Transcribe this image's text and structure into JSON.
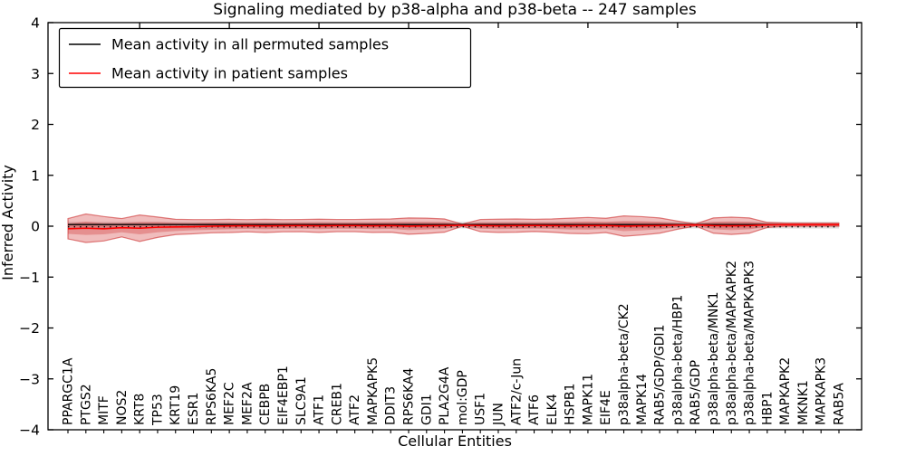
{
  "figure": {
    "title": "Signaling mediated by p38-alpha and p38-beta -- 247 samples",
    "xlabel": "Cellular Entities",
    "ylabel": "Inferred Activity",
    "legend": [
      {
        "label": "Mean activity in all permuted samples",
        "color": "#000000"
      },
      {
        "label": "Mean activity in patient samples",
        "color": "#ff0000"
      }
    ]
  },
  "chart_data": {
    "type": "line",
    "title": "Signaling mediated by p38-alpha and p38-beta -- 247 samples",
    "xlabel": "Cellular Entities",
    "ylabel": "Inferred Activity",
    "ylim": [
      -4,
      4
    ],
    "yticks": [
      4,
      3,
      2,
      1,
      0,
      -1,
      -2,
      -3,
      -4
    ],
    "ytick_labels": [
      "4",
      "3",
      "2",
      "1",
      "0",
      "−1",
      "−2",
      "−3",
      "−4"
    ],
    "xticks_numeric": [
      5,
      10,
      15,
      20,
      25,
      30,
      35,
      40,
      45
    ],
    "grid": false,
    "legend_position": "upper-left",
    "entities": [
      "PPARGC1A",
      "PTGS2",
      "MITF",
      "NOS2",
      "KRT8",
      "TP53",
      "KRT19",
      "ESR1",
      "RPS6KA5",
      "MEF2C",
      "MEF2A",
      "CEBPB",
      "EIF4EBP1",
      "SLC9A1",
      "ATF1",
      "CREB1",
      "ATF2",
      "MAPKAPK5",
      "DDIT3",
      "RPS6KA4",
      "GDI1",
      "PLA2G4A",
      "mol:GDP",
      "USF1",
      "JUN",
      "ATF2/c-Jun",
      "ATF6",
      "ELK4",
      "HSPB1",
      "MAPK11",
      "EIF4E",
      "p38alpha-beta/CK2",
      "MAPK14",
      "RAB5/GDP/GDI1",
      "p38alpha-beta/HBP1",
      "RAB5/GDP",
      "p38alpha-beta/MNK1",
      "p38alpha-beta/MAPKAPK2",
      "p38alpha-beta/MAPKAPK3",
      "HBP1",
      "MAPKAPK2",
      "MKNK1",
      "MAPKAPK3",
      "RAB5A"
    ],
    "series": [
      {
        "name": "Mean activity in all permuted samples",
        "color": "#000000",
        "style": "solid",
        "constant_value": 0.032
      },
      {
        "name": "Permuted band edge (dotted)",
        "color": "#000000",
        "style": "dotted",
        "constant_value": -0.012
      },
      {
        "name": "Mean activity in patient samples",
        "color": "#ff0000",
        "style": "solid",
        "values": [
          -0.05,
          -0.04,
          -0.05,
          -0.03,
          -0.04,
          -0.02,
          -0.015,
          -0.01,
          0.0,
          0.005,
          0.01,
          0.005,
          0.01,
          0.012,
          0.008,
          0.012,
          0.012,
          0.008,
          0.012,
          0.002,
          0.008,
          0.012,
          0.02,
          0.012,
          0.008,
          0.012,
          0.015,
          0.012,
          0.008,
          0.012,
          0.015,
          0.002,
          0.008,
          0.012,
          0.02,
          0.025,
          0.012,
          0.008,
          0.012,
          0.025,
          0.03,
          0.03,
          0.03,
          0.03
        ]
      }
    ],
    "bands": [
      {
        "name": "patient-std-outer",
        "fill": "#cd2323",
        "opacity": 0.3,
        "edge": "#c81e1e",
        "edge_opacity": 0.55,
        "half_widths": [
          0.2,
          0.28,
          0.24,
          0.18,
          0.26,
          0.2,
          0.15,
          0.14,
          0.13,
          0.13,
          0.12,
          0.13,
          0.12,
          0.12,
          0.13,
          0.12,
          0.12,
          0.13,
          0.13,
          0.16,
          0.15,
          0.13,
          0.02,
          0.12,
          0.13,
          0.13,
          0.12,
          0.13,
          0.15,
          0.16,
          0.14,
          0.2,
          0.18,
          0.15,
          0.08,
          0.02,
          0.15,
          0.17,
          0.15,
          0.05,
          0.03,
          0.03,
          0.03,
          0.03
        ]
      },
      {
        "name": "patient-std-inner",
        "fill": "#cd2323",
        "opacity": 0.3,
        "edge": "none",
        "edge_opacity": 0,
        "half_widths": [
          0.1,
          0.13,
          0.11,
          0.09,
          0.12,
          0.1,
          0.08,
          0.07,
          0.07,
          0.065,
          0.06,
          0.065,
          0.06,
          0.06,
          0.065,
          0.06,
          0.06,
          0.065,
          0.065,
          0.08,
          0.075,
          0.065,
          0.012,
          0.06,
          0.065,
          0.065,
          0.06,
          0.065,
          0.075,
          0.08,
          0.07,
          0.1,
          0.09,
          0.075,
          0.04,
          0.012,
          0.075,
          0.085,
          0.075,
          0.03,
          0.02,
          0.02,
          0.02,
          0.02
        ]
      },
      {
        "name": "permuted-std",
        "fill": "#c9c9c9",
        "opacity": 0.65,
        "center": 0.02,
        "half_width": 0.065
      }
    ]
  }
}
